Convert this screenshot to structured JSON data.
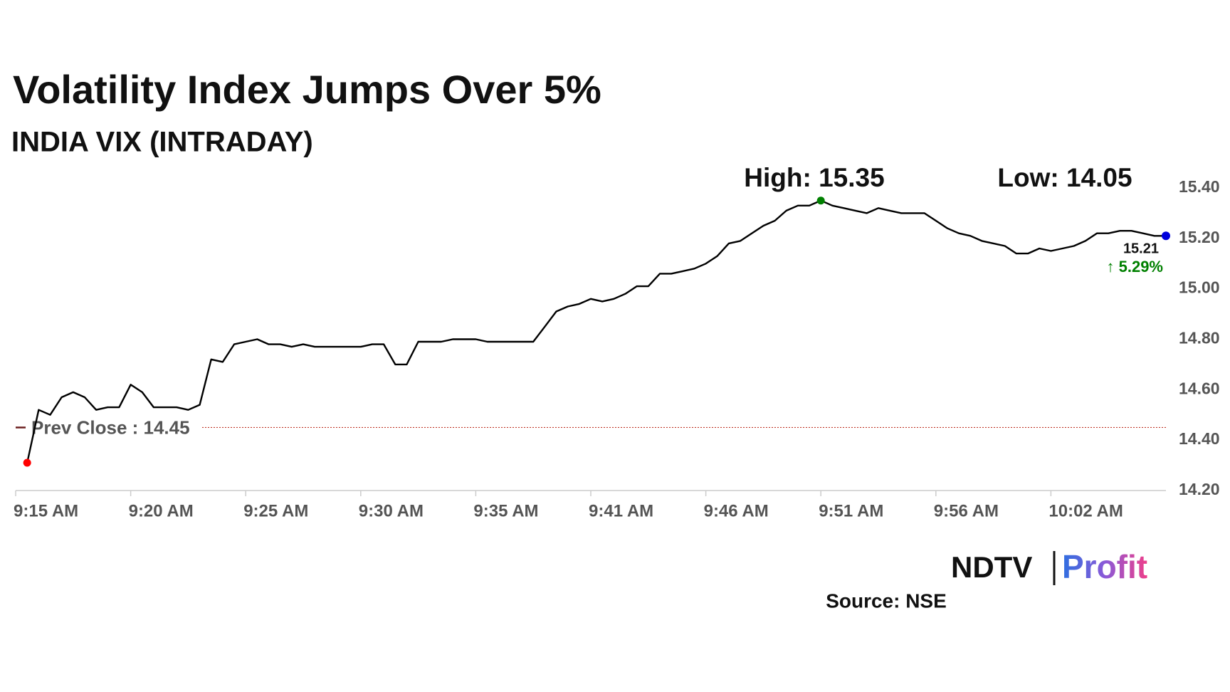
{
  "chart_data": {
    "type": "line",
    "title": "Volatility Index Jumps Over 5%",
    "subtitle": "INDIA VIX (INTRADAY)",
    "categories": [
      "9:15 AM",
      null,
      null,
      null,
      null,
      null,
      null,
      null,
      null,
      null,
      "9:20 AM",
      null,
      null,
      null,
      null,
      null,
      null,
      null,
      null,
      null,
      "9:25 AM",
      null,
      null,
      null,
      null,
      null,
      null,
      null,
      null,
      null,
      "9:30 AM",
      null,
      null,
      null,
      null,
      null,
      null,
      null,
      null,
      null,
      "9:35 AM",
      null,
      null,
      null,
      null,
      null,
      null,
      null,
      null,
      null,
      "9:41 AM",
      null,
      null,
      null,
      null,
      null,
      null,
      null,
      null,
      null,
      "9:46 AM",
      null,
      null,
      null,
      null,
      null,
      null,
      null,
      null,
      null,
      "9:51 AM",
      null,
      null,
      null,
      null,
      null,
      null,
      null,
      null,
      null,
      "9:56 AM",
      null,
      null,
      null,
      null,
      null,
      null,
      null,
      null,
      null,
      "10:02 AM",
      null,
      null,
      null,
      null,
      null,
      null,
      null,
      null,
      null,
      null
    ],
    "series": [
      {
        "name": "INDIA VIX",
        "color": "#000000",
        "values": [
          null,
          14.31,
          14.52,
          14.5,
          14.57,
          14.59,
          14.57,
          14.52,
          14.53,
          14.53,
          14.62,
          14.59,
          14.53,
          14.53,
          14.53,
          14.52,
          14.54,
          14.72,
          14.71,
          14.78,
          14.79,
          14.8,
          14.78,
          14.78,
          14.77,
          14.78,
          14.77,
          14.77,
          14.77,
          14.77,
          14.77,
          14.78,
          14.78,
          14.7,
          14.7,
          14.79,
          14.79,
          14.79,
          14.8,
          14.8,
          14.8,
          14.79,
          14.79,
          14.79,
          14.79,
          14.79,
          14.85,
          14.91,
          14.93,
          14.94,
          14.96,
          14.95,
          14.96,
          14.98,
          15.01,
          15.01,
          15.06,
          15.06,
          15.07,
          15.08,
          15.1,
          15.13,
          15.18,
          15.19,
          15.22,
          15.25,
          15.27,
          15.31,
          15.33,
          15.33,
          15.35,
          15.33,
          15.32,
          15.31,
          15.3,
          15.32,
          15.31,
          15.3,
          15.3,
          15.3,
          15.27,
          15.24,
          15.22,
          15.21,
          15.19,
          15.18,
          15.17,
          15.14,
          15.14,
          15.16,
          15.15,
          15.16,
          15.17,
          15.19,
          15.22,
          15.22,
          15.23,
          15.23,
          15.22,
          15.21,
          15.21
        ]
      }
    ],
    "ylim": [
      14.2,
      15.4
    ],
    "yticks": [
      {
        "value": 14.2,
        "label": "14.20"
      },
      {
        "value": 14.4,
        "label": "14.40"
      },
      {
        "value": 14.6,
        "label": "14.60"
      },
      {
        "value": 14.8,
        "label": "14.80"
      },
      {
        "value": 15.0,
        "label": "15.00"
      },
      {
        "value": 15.2,
        "label": "15.20"
      },
      {
        "value": 15.4,
        "label": "15.40"
      }
    ],
    "prev_close": {
      "value": 14.45,
      "label": "Prev Close : 14.45"
    },
    "high_label": "High: 15.35",
    "low_label": "Low: 14.05",
    "high_index": 70,
    "low_index": 1,
    "last_value_label": "15.21",
    "change_label": "↑ 5.29%",
    "source": "Source: NSE",
    "logo": {
      "left": "NDTV",
      "right": "Profit"
    }
  }
}
